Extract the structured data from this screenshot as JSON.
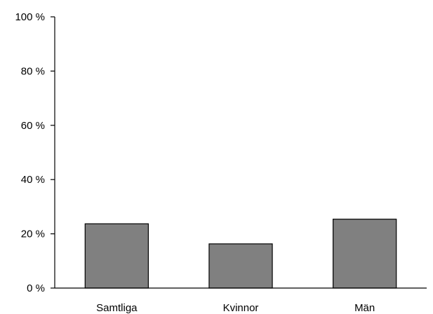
{
  "chart_data": {
    "type": "bar",
    "title": "",
    "xlabel": "",
    "ylabel": "",
    "categories": [
      "Samtliga",
      "Kvinnor",
      "Män"
    ],
    "values": [
      23.7,
      16.3,
      25.4
    ],
    "ylim": [
      0,
      100
    ],
    "y_ticks": [
      0,
      20,
      40,
      60,
      80,
      100
    ],
    "y_tick_labels": [
      "0 %",
      "20 %",
      "40 %",
      "60 %",
      "80 %",
      "100 %"
    ],
    "grid": false,
    "legend": "none",
    "bar_color": "#808080",
    "bar_edge_color": "#000000"
  }
}
